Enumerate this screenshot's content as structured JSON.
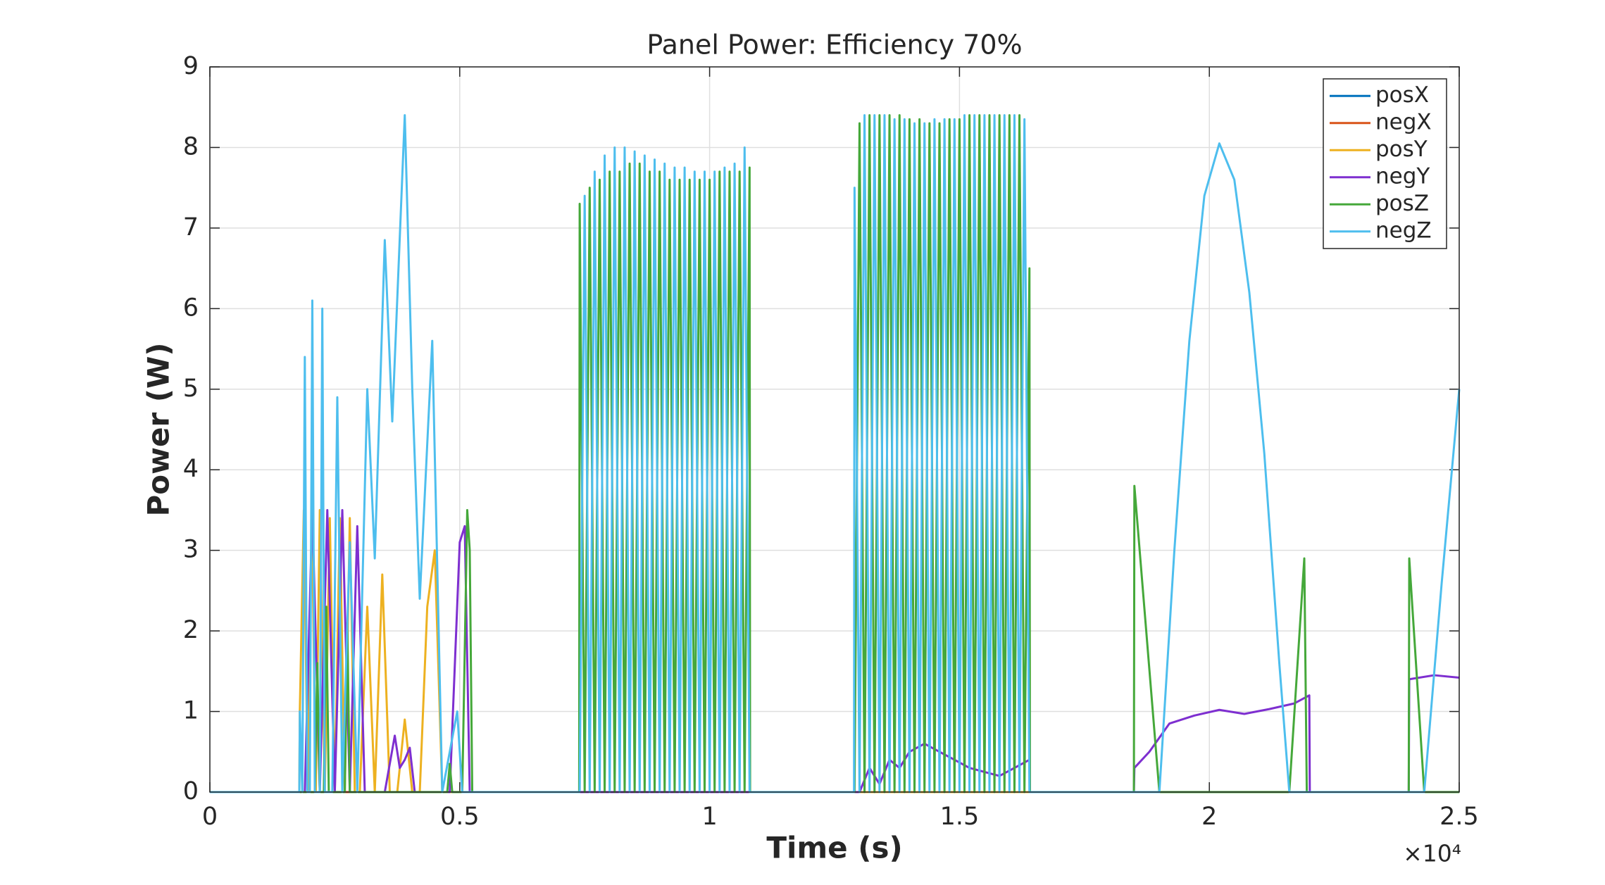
{
  "chart_data": {
    "type": "line",
    "title": "Panel Power: Efficiency 70%",
    "xlabel": "Time (s)",
    "ylabel": "Power (W)",
    "x_multiplier": "×10⁴",
    "xlim": [
      0,
      25000
    ],
    "xticks": [
      0,
      {
        "value": 5000,
        "label": "0.5"
      },
      {
        "value": 10000,
        "label": "1"
      },
      {
        "value": 15000,
        "label": "1.5"
      },
      {
        "value": 20000,
        "label": "2"
      },
      {
        "value": 25000,
        "label": "2.5"
      }
    ],
    "ylim": [
      0,
      9
    ],
    "yticks": [
      0,
      1,
      2,
      3,
      4,
      5,
      6,
      7,
      8,
      9
    ],
    "grid": true,
    "legend_position": "top-right",
    "series": [
      {
        "name": "posX",
        "color": "#0072BD",
        "x": [
          0,
          25000
        ],
        "values": [
          0,
          0
        ]
      },
      {
        "name": "negX",
        "color": "#D95319",
        "x": [
          0,
          25000
        ],
        "values": [
          0,
          0
        ]
      },
      {
        "name": "posY",
        "color": "#EDB120",
        "x": [
          0,
          1790,
          1800,
          1880,
          1960,
          2040,
          2120,
          2200,
          2300,
          2400,
          2500,
          2600,
          2700,
          2800,
          2900,
          3000,
          3150,
          3300,
          3450,
          3600,
          3750,
          3900,
          4050,
          4200,
          4350,
          4500,
          4650,
          4700,
          4710,
          25000
        ],
        "values": [
          0,
          0,
          1,
          3.5,
          0,
          3.5,
          0,
          3.5,
          0,
          3.4,
          0,
          3.4,
          0,
          3.4,
          0,
          0,
          2.3,
          0,
          2.7,
          0,
          0,
          0.9,
          0,
          0,
          2.3,
          3.0,
          0,
          0,
          0,
          0
        ]
      },
      {
        "name": "negY",
        "color": "#7E2FD0",
        "x": [
          0,
          1900,
          2050,
          2200,
          2350,
          2500,
          2650,
          2800,
          2950,
          3100,
          3250,
          3500,
          3700,
          3800,
          3900,
          4000,
          4100,
          4200,
          4300,
          4600,
          4800,
          5000,
          5100,
          5200,
          13000,
          13200,
          13400,
          13600,
          13800,
          14000,
          14300,
          14600,
          14900,
          15200,
          15500,
          15800,
          16100,
          16400,
          16410,
          18490,
          18500,
          18800,
          19200,
          19700,
          20200,
          20700,
          21200,
          21700,
          22000,
          22010,
          23990,
          24000,
          24500,
          25000
        ],
        "values": [
          0,
          0,
          3.5,
          0,
          3.5,
          0,
          3.5,
          0,
          3.3,
          0,
          0,
          0,
          0.7,
          0.3,
          0.4,
          0.55,
          0,
          0,
          0,
          0,
          0,
          3.1,
          3.3,
          0,
          0,
          0.3,
          0.1,
          0.4,
          0.3,
          0.5,
          0.6,
          0.5,
          0.4,
          0.3,
          0.25,
          0.2,
          0.3,
          0.4,
          0,
          0,
          0.3,
          0.5,
          0.85,
          0.95,
          1.02,
          0.97,
          1.03,
          1.1,
          1.2,
          0,
          0,
          1.4,
          1.45,
          1.42
        ]
      },
      {
        "name": "posZ",
        "color": "#45A83A",
        "x": [
          0,
          2100,
          2150,
          2200,
          2280,
          2330,
          2380,
          2700,
          2750,
          2800,
          4750,
          4800,
          4850,
          5050,
          5150,
          5200,
          5250,
          7390,
          7400,
          7500,
          7600,
          7700,
          7800,
          7900,
          8000,
          8100,
          8200,
          8300,
          8400,
          8500,
          8600,
          8700,
          8800,
          8900,
          9000,
          9100,
          9200,
          9300,
          9400,
          9500,
          9600,
          9700,
          9800,
          9900,
          10000,
          10100,
          10200,
          10300,
          10400,
          10500,
          10600,
          10700,
          10800,
          10810,
          12900,
          13000,
          13100,
          13200,
          13300,
          13400,
          13500,
          13600,
          13700,
          13800,
          13900,
          14000,
          14100,
          14200,
          14300,
          14400,
          14500,
          14600,
          14700,
          14800,
          14900,
          15000,
          15100,
          15200,
          15300,
          15400,
          15500,
          15600,
          15700,
          15800,
          15900,
          16000,
          16100,
          16200,
          16300,
          16400,
          16410,
          18490,
          18500,
          19000,
          21600,
          21900,
          21950,
          23990,
          24000,
          24300,
          25000
        ],
        "values": [
          0,
          0,
          1.6,
          0,
          0,
          2.3,
          0,
          0,
          2.1,
          0,
          0,
          0.35,
          0,
          0,
          3.5,
          3.0,
          0,
          0,
          7.3,
          0,
          7.5,
          0,
          7.6,
          0,
          7.7,
          0,
          7.7,
          0,
          7.8,
          0,
          7.8,
          0,
          7.7,
          0,
          7.7,
          0,
          7.6,
          0,
          7.6,
          0,
          7.6,
          0,
          7.6,
          0,
          7.6,
          0,
          7.7,
          0,
          7.7,
          0,
          7.7,
          0,
          7.75,
          0,
          0,
          8.3,
          0,
          8.4,
          0,
          8.4,
          0,
          8.4,
          0,
          8.4,
          0,
          8.35,
          0,
          8.35,
          0,
          8.3,
          0,
          8.3,
          0,
          8.35,
          0,
          8.35,
          0,
          8.4,
          0,
          8.4,
          0,
          8.4,
          0,
          8.4,
          0,
          8.4,
          0,
          8.4,
          0,
          6.5,
          0,
          0,
          3.8,
          0,
          0,
          2.9,
          0,
          0,
          2.9,
          0,
          0
        ]
      },
      {
        "name": "negZ",
        "color": "#4DBEEE",
        "x": [
          0,
          1790,
          1800,
          1850,
          1900,
          1950,
          2000,
          2050,
          2100,
          2200,
          2250,
          2300,
          2450,
          2550,
          2650,
          2800,
          2950,
          3150,
          3300,
          3500,
          3650,
          3900,
          4050,
          4200,
          4450,
          4650,
          4950,
          5050,
          7400,
          7500,
          7600,
          7700,
          7800,
          7900,
          8000,
          8100,
          8200,
          8300,
          8400,
          8500,
          8600,
          8700,
          8800,
          8900,
          9000,
          9100,
          9200,
          9300,
          9400,
          9500,
          9600,
          9700,
          9800,
          9900,
          10000,
          10100,
          10200,
          10300,
          10400,
          10500,
          10600,
          10700,
          10800,
          12890,
          12900,
          13000,
          13100,
          13200,
          13300,
          13400,
          13500,
          13600,
          13700,
          13800,
          13900,
          14000,
          14100,
          14200,
          14300,
          14400,
          14500,
          14600,
          14700,
          14800,
          14900,
          15000,
          15100,
          15200,
          15300,
          15400,
          15500,
          15600,
          15700,
          15800,
          15900,
          16000,
          16100,
          16200,
          16300,
          16400,
          19000,
          19300,
          19600,
          19900,
          20200,
          20500,
          20800,
          21100,
          21400,
          21600,
          24300,
          24650,
          25000
        ],
        "values": [
          0,
          0,
          1.0,
          0,
          5.4,
          0,
          0,
          6.1,
          0,
          0,
          6.0,
          0,
          0,
          4.9,
          0,
          3.1,
          0,
          5.0,
          2.9,
          6.85,
          4.6,
          8.4,
          5.0,
          2.4,
          5.6,
          0,
          1.0,
          0,
          0,
          7.4,
          0,
          7.7,
          0,
          7.9,
          0,
          8.0,
          0,
          8.0,
          0,
          7.95,
          0,
          7.9,
          0,
          7.85,
          0,
          7.8,
          0,
          7.75,
          0,
          7.75,
          0,
          7.7,
          0,
          7.7,
          0,
          7.7,
          0,
          7.75,
          0,
          7.8,
          0,
          8.0,
          0,
          0,
          7.5,
          0,
          8.4,
          0,
          8.4,
          0,
          8.4,
          0,
          8.35,
          0,
          8.35,
          0,
          8.3,
          0,
          8.3,
          0,
          8.35,
          0,
          8.35,
          0,
          8.35,
          0,
          8.4,
          0,
          8.4,
          0,
          8.4,
          0,
          8.4,
          0,
          8.4,
          0,
          8.4,
          0,
          8.35,
          0,
          0,
          3.0,
          5.6,
          7.4,
          8.05,
          7.6,
          6.2,
          4.2,
          1.6,
          0,
          0,
          2.6,
          5.0
        ]
      }
    ]
  }
}
